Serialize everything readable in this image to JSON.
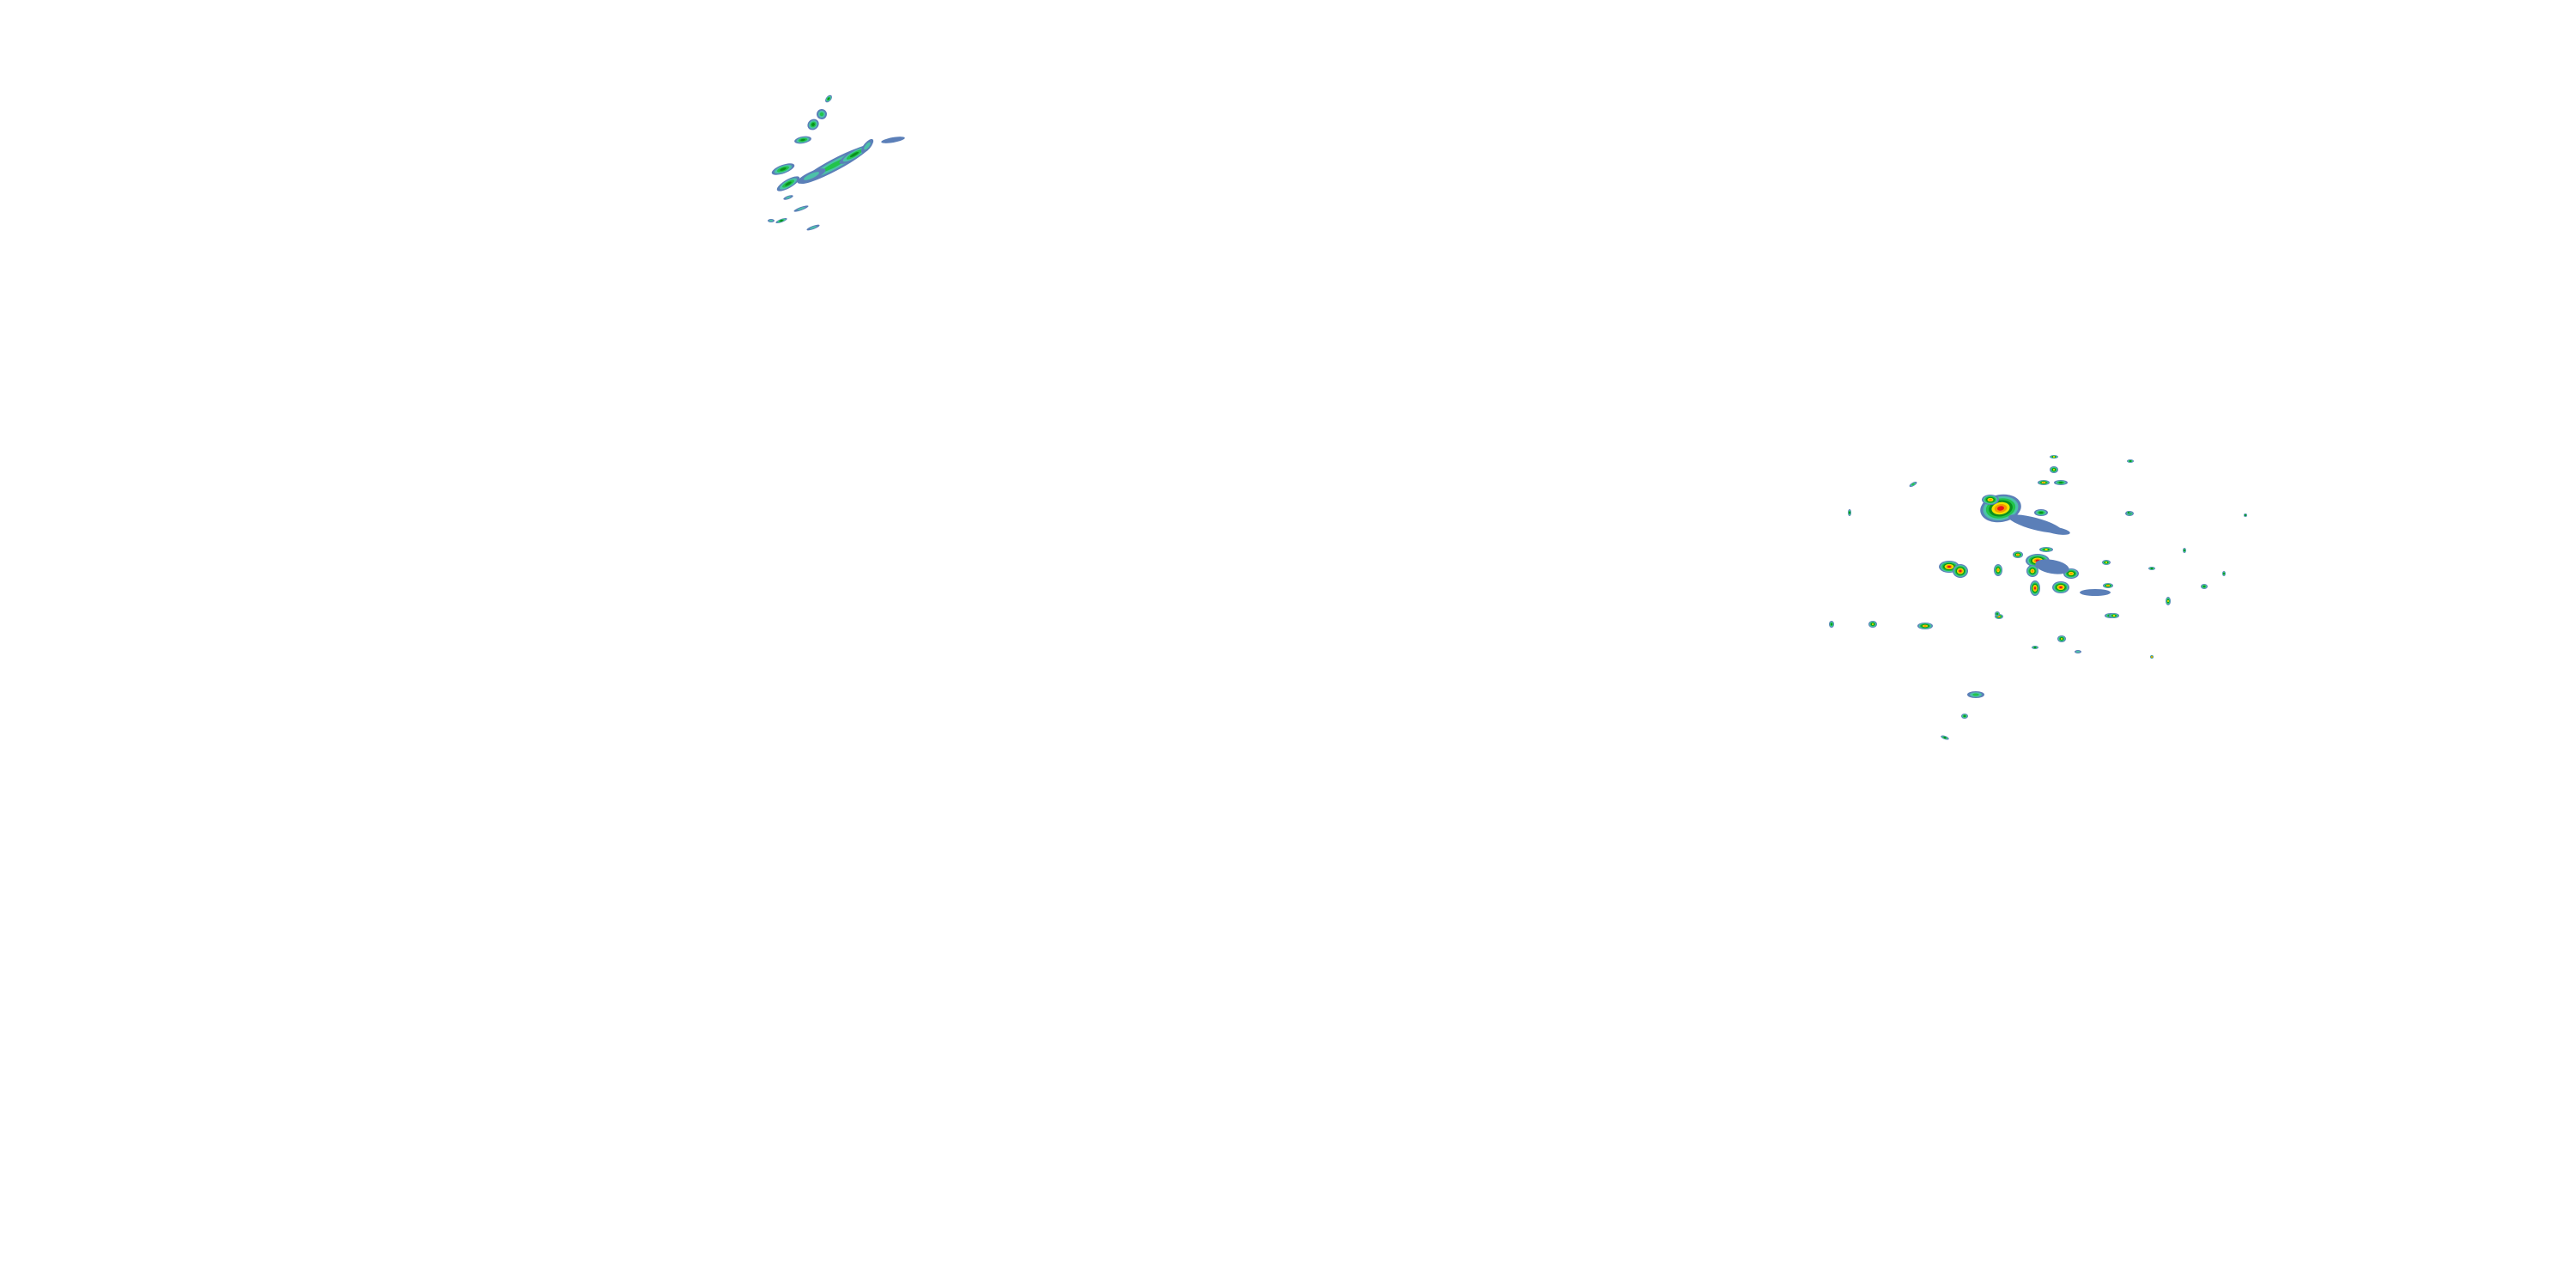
{
  "map": {
    "layer": "radar-reflectivity",
    "background": "#ffffff",
    "palette": {
      "light_blue": "#5b7fb8",
      "steel_blue": "#4f93c4",
      "teal": "#4cc2a8",
      "green": "#22c44a",
      "dark_green": "#0a8f1e",
      "yellow": "#f2e200",
      "orange": "#f59a00",
      "red": "#e8161a"
    }
  }
}
